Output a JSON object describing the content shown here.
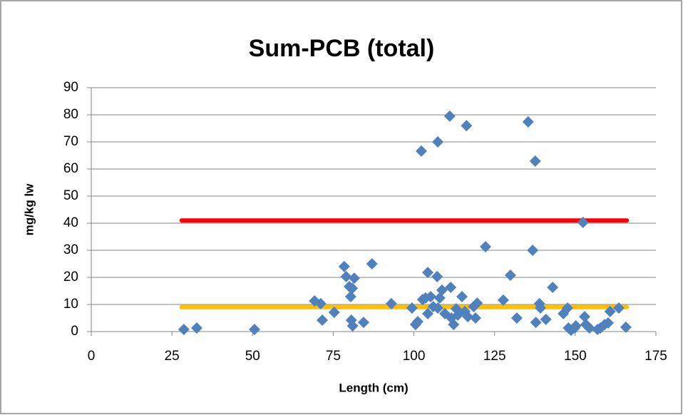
{
  "chart_data": {
    "type": "scatter",
    "title": "Sum-PCB (total)",
    "xlabel": "Length (cm)",
    "ylabel": "mg/kg lw",
    "xlim": [
      0,
      175
    ],
    "xticks": [
      0,
      25,
      50,
      75,
      100,
      125,
      150,
      175
    ],
    "ylim": [
      0,
      90
    ],
    "yticks": [
      0,
      10,
      20,
      30,
      40,
      50,
      60,
      70,
      80,
      90
    ],
    "grid": true,
    "series": [
      {
        "type": "scatter",
        "color": "#4f81bd",
        "x": [
          28.7,
          32.7,
          50.6,
          69.2,
          71.1,
          71.6,
          75.3,
          78.4,
          79,
          80,
          80.4,
          80.9,
          81.5,
          80.6,
          81,
          84.4,
          87,
          93,
          99.4,
          100.5,
          101.2,
          102.3,
          102.7,
          103.6,
          104.3,
          104.3,
          105.2,
          106,
          107.2,
          107.4,
          107.4,
          108,
          108.7,
          109.6,
          111.1,
          111.4,
          111.6,
          112.3,
          113.1,
          113.6,
          114.9,
          115.8,
          116.3,
          116.7,
          118.5,
          119.1,
          119.6,
          122.2,
          127.7,
          129.9,
          131.9,
          135.4,
          136.8,
          137.6,
          137.8,
          138.9,
          139.2,
          140.9,
          143,
          146.3,
          147.6,
          147.9,
          148.7,
          149.8,
          150.2,
          152.4,
          152.9,
          153.3,
          154.4,
          156.9,
          157.8,
          159.1,
          160.2,
          160.8,
          163.5,
          165.7
        ],
        "values": [
          0.8,
          1.3,
          0.8,
          11.3,
          10.3,
          4.2,
          7.1,
          24,
          20.3,
          16.6,
          12.9,
          16,
          19.7,
          4.2,
          2.1,
          3.4,
          25,
          10.3,
          8.7,
          2.6,
          3.7,
          66.6,
          11.8,
          12.4,
          6.6,
          21.8,
          12.9,
          9.2,
          20.3,
          70,
          8.7,
          12.4,
          15.3,
          6.6,
          79.5,
          16.3,
          5,
          2.6,
          8.4,
          6.1,
          12.9,
          7.4,
          76,
          5.5,
          9.2,
          5,
          10.5,
          31.3,
          11.6,
          20.8,
          5,
          77.4,
          30,
          62.9,
          3.4,
          10.3,
          8.7,
          4.5,
          16.3,
          6.6,
          8.7,
          1.3,
          0.5,
          1.3,
          2.1,
          40.3,
          5.5,
          2.6,
          1.3,
          0.8,
          1.3,
          2.6,
          3.2,
          7.4,
          8.7,
          1.6
        ]
      },
      {
        "type": "line",
        "color": "#ff0000",
        "x": [
          28,
          166
        ],
        "values": [
          41,
          41
        ]
      },
      {
        "type": "line",
        "color": "#ffc000",
        "x": [
          28,
          166
        ],
        "values": [
          9,
          9
        ]
      }
    ]
  }
}
